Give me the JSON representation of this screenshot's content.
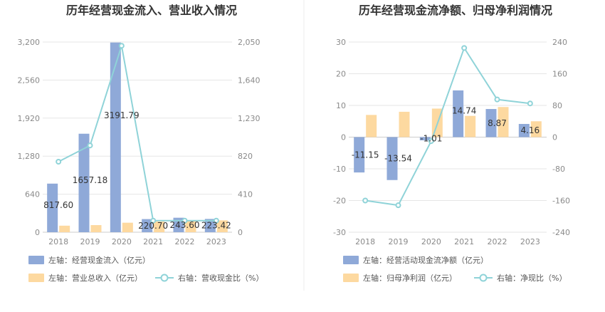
{
  "chart_data": [
    {
      "type": "bar",
      "title": "历年经营现金流入、营业收入情况",
      "categories": [
        "2018",
        "2019",
        "2020",
        "2021",
        "2022",
        "2023"
      ],
      "left_axis": {
        "min": 0,
        "max": 3200,
        "ticks": [
          "0",
          "640",
          "1,280",
          "1,920",
          "2,560",
          "3,200"
        ],
        "tick_values": [
          0,
          640,
          1280,
          1920,
          2560,
          3200
        ]
      },
      "right_axis": {
        "min": 0,
        "max": 2050,
        "ticks": [
          "0",
          "410",
          "820",
          "1,230",
          "1,640",
          "2,050"
        ],
        "tick_values": [
          0,
          410,
          820,
          1230,
          1640,
          2050
        ]
      },
      "series": [
        {
          "name": "左轴：经营现金流入（亿元）",
          "kind": "bar",
          "axis": "left",
          "color": "#8fa9d8",
          "values": [
            817.6,
            1657.18,
            3191.79,
            220.7,
            243.6,
            223.42
          ],
          "labels": [
            "817.60",
            "1657.18",
            "3191.79",
            "220.70",
            "243.60",
            "223.42"
          ]
        },
        {
          "name": "左轴：营业总收入（亿元）",
          "kind": "bar",
          "axis": "left",
          "color": "#fdd9a0",
          "values": [
            110,
            120,
            160,
            180,
            190,
            200
          ]
        },
        {
          "name": "右轴：营收现金比（%）",
          "kind": "line",
          "axis": "right",
          "color": "#8fd3d8",
          "values": [
            760,
            935,
            2010,
            125,
            125,
            125
          ]
        }
      ],
      "grid": true,
      "legend_position": "bottom"
    },
    {
      "type": "bar",
      "title": "历年经营现金流净额、归母净利润情况",
      "categories": [
        "2018",
        "2019",
        "2020",
        "2021",
        "2022",
        "2023"
      ],
      "left_axis": {
        "min": -30,
        "max": 30,
        "ticks": [
          "-30",
          "-20",
          "-10",
          "0",
          "10",
          "20",
          "30"
        ],
        "tick_values": [
          -30,
          -20,
          -10,
          0,
          10,
          20,
          30
        ]
      },
      "right_axis": {
        "min": -240,
        "max": 240,
        "ticks": [
          "-240",
          "-160",
          "-80",
          "0",
          "80",
          "160",
          "240"
        ],
        "tick_values": [
          -240,
          -160,
          -80,
          0,
          80,
          160,
          240
        ]
      },
      "series": [
        {
          "name": "左轴：经营活动现金流净额（亿元）",
          "kind": "bar",
          "axis": "left",
          "color": "#8fa9d8",
          "values": [
            -11.15,
            -13.54,
            -1.01,
            14.74,
            8.87,
            4.16
          ],
          "labels": [
            "-11.15",
            "-13.54",
            "-1.01",
            "14.74",
            "8.87",
            "4.16"
          ]
        },
        {
          "name": "左轴：归母净利润（亿元）",
          "kind": "bar",
          "axis": "left",
          "color": "#fdd9a0",
          "values": [
            7.0,
            8.0,
            9.0,
            6.7,
            9.5,
            5.0
          ]
        },
        {
          "name": "右轴：净现比（%）",
          "kind": "line",
          "axis": "right",
          "color": "#8fd3d8",
          "values": [
            -160,
            -172,
            -10,
            225,
            95,
            85
          ]
        }
      ],
      "grid": true,
      "legend_position": "bottom"
    }
  ]
}
